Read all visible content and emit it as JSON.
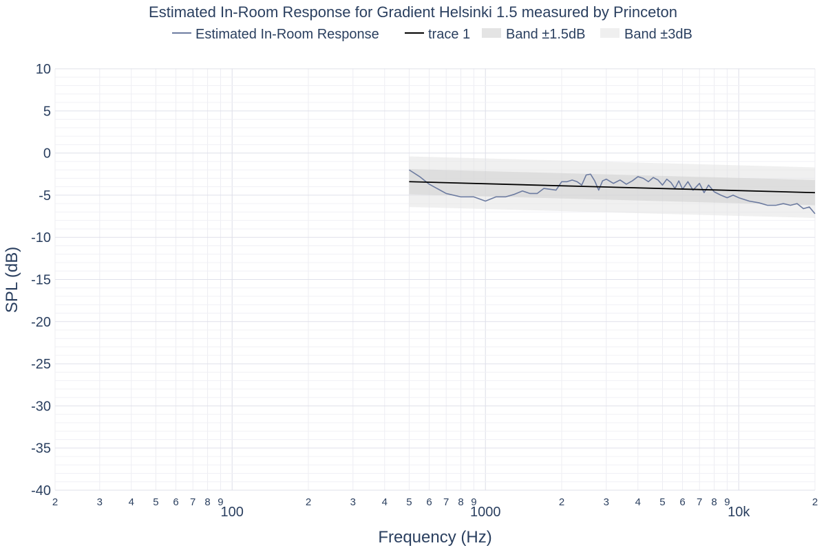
{
  "chart_data": {
    "type": "line",
    "title": "Estimated In-Room Response for Gradient Helsinki 1.5 measured by Princeton",
    "xlabel": "Frequency (Hz)",
    "ylabel": "SPL (dB)",
    "x_scale": "log",
    "xlim": [
      20,
      20000
    ],
    "ylim": [
      -40,
      10
    ],
    "grid": true,
    "legend_position": "top",
    "y_ticks": [
      10,
      5,
      0,
      -5,
      -10,
      -15,
      -20,
      -25,
      -30,
      -35,
      -40
    ],
    "y_tick_labels": [
      "10",
      "5",
      "0",
      "-5",
      "-10",
      "-15",
      "-20",
      "-25",
      "-30",
      "-35",
      "-40"
    ],
    "x_minor_ticks": [
      {
        "value": 20,
        "label": "2"
      },
      {
        "value": 30,
        "label": "3"
      },
      {
        "value": 40,
        "label": "4"
      },
      {
        "value": 50,
        "label": "5"
      },
      {
        "value": 60,
        "label": "6"
      },
      {
        "value": 70,
        "label": "7"
      },
      {
        "value": 80,
        "label": "8"
      },
      {
        "value": 90,
        "label": "9"
      },
      {
        "value": 200,
        "label": "2"
      },
      {
        "value": 300,
        "label": "3"
      },
      {
        "value": 400,
        "label": "4"
      },
      {
        "value": 500,
        "label": "5"
      },
      {
        "value": 600,
        "label": "6"
      },
      {
        "value": 700,
        "label": "7"
      },
      {
        "value": 800,
        "label": "8"
      },
      {
        "value": 900,
        "label": "9"
      },
      {
        "value": 2000,
        "label": "2"
      },
      {
        "value": 3000,
        "label": "3"
      },
      {
        "value": 4000,
        "label": "4"
      },
      {
        "value": 5000,
        "label": "5"
      },
      {
        "value": 6000,
        "label": "6"
      },
      {
        "value": 7000,
        "label": "7"
      },
      {
        "value": 8000,
        "label": "8"
      },
      {
        "value": 9000,
        "label": "9"
      },
      {
        "value": 20000,
        "label": "2"
      }
    ],
    "x_major_ticks": [
      {
        "value": 100,
        "label": "100"
      },
      {
        "value": 1000,
        "label": "1000"
      },
      {
        "value": 10000,
        "label": "10k"
      }
    ],
    "series": [
      {
        "name": "Estimated In-Room Response",
        "color": "#6b7a9f",
        "x": [
          500,
          550,
          600,
          700,
          800,
          900,
          1000,
          1100,
          1200,
          1300,
          1400,
          1500,
          1600,
          1700,
          1800,
          1900,
          2000,
          2100,
          2200,
          2300,
          2400,
          2500,
          2600,
          2700,
          2800,
          2900,
          3000,
          3200,
          3400,
          3600,
          3800,
          4000,
          4200,
          4400,
          4600,
          4800,
          5000,
          5200,
          5400,
          5600,
          5800,
          6000,
          6300,
          6600,
          7000,
          7300,
          7600,
          8000,
          8500,
          9000,
          9500,
          10000,
          11000,
          12000,
          13000,
          14000,
          15000,
          16000,
          17000,
          18000,
          19000,
          20000
        ],
        "values": [
          -2.0,
          -2.8,
          -3.7,
          -4.8,
          -5.2,
          -5.2,
          -5.7,
          -5.2,
          -5.2,
          -4.9,
          -4.5,
          -4.8,
          -4.8,
          -4.2,
          -4.3,
          -4.4,
          -3.4,
          -3.4,
          -3.2,
          -3.4,
          -3.8,
          -2.6,
          -2.5,
          -3.3,
          -4.4,
          -3.3,
          -3.1,
          -3.6,
          -3.2,
          -3.7,
          -3.3,
          -2.8,
          -3.0,
          -3.4,
          -2.9,
          -3.2,
          -3.8,
          -3.1,
          -3.5,
          -4.2,
          -3.3,
          -4.3,
          -3.4,
          -4.4,
          -3.6,
          -4.7,
          -3.8,
          -4.6,
          -5.0,
          -5.3,
          -5.0,
          -5.3,
          -5.7,
          -5.9,
          -6.2,
          -6.2,
          -6.0,
          -6.2,
          -6.0,
          -6.6,
          -6.4,
          -7.2
        ]
      },
      {
        "name": "trace 1",
        "color": "#000000",
        "x": [
          500,
          20000
        ],
        "values": [
          -3.4,
          -4.7
        ]
      }
    ],
    "bands": [
      {
        "name": "Band ±1.5dB",
        "color": "#d0d0d0",
        "opacity": 0.55,
        "x": [
          500,
          20000
        ],
        "upper": [
          -1.9,
          -3.2
        ],
        "lower": [
          -4.9,
          -6.2
        ]
      },
      {
        "name": "Band ±3dB",
        "color": "#e2e2e2",
        "opacity": 0.5,
        "x": [
          500,
          20000
        ],
        "upper": [
          -0.4,
          -1.7
        ],
        "lower": [
          -6.4,
          -7.7
        ]
      }
    ]
  }
}
